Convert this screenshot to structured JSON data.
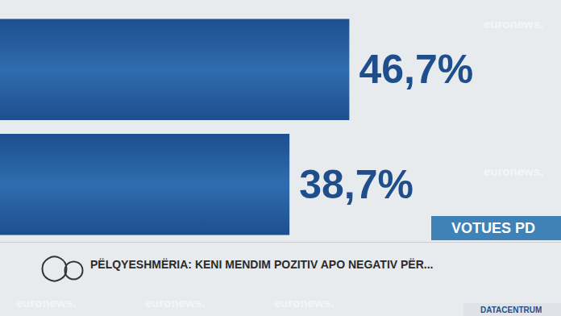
{
  "chart_data": {
    "type": "bar",
    "orientation": "horizontal",
    "categories": [
      null,
      null
    ],
    "values": [
      46.7,
      38.7
    ],
    "value_labels": [
      "46,7%",
      "38,7%"
    ],
    "data_labels": true,
    "color": "#1d4f8e",
    "xlim": [
      0,
      75
    ],
    "xticks": [
      0,
      75
    ],
    "grid": false,
    "tick_labels": false,
    "annotations": {
      "badge": "VOTUES PD",
      "question": "PËLQYESHMËRIA: KENI MENDIM POZITIV APO NEGATIV PËR...",
      "source": "DATACENTRUM",
      "watermark": "euronews."
    }
  }
}
